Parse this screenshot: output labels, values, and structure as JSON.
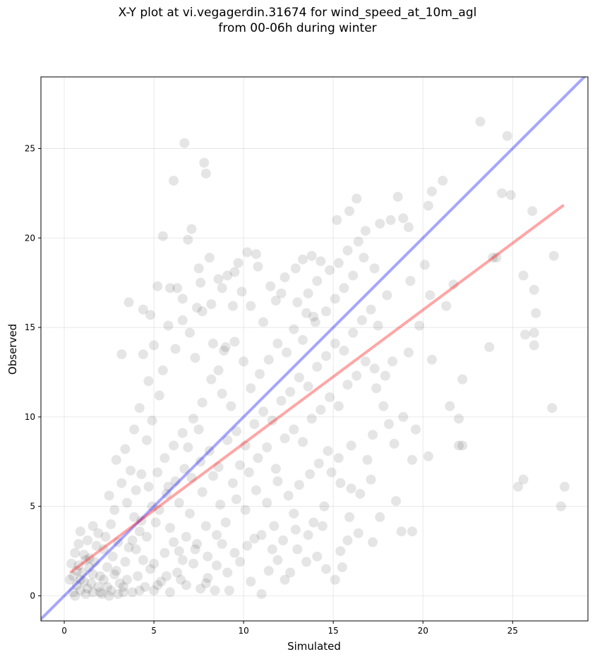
{
  "chart_data": {
    "type": "scatter",
    "title_lines": [
      "X-Y plot at vi.vegagerdin.31674 for wind_speed_at_10m_agl",
      "from 00-06h during winter"
    ],
    "xlabel": "Simulated",
    "ylabel": "Observed",
    "xlim": [
      -1.3,
      29.2
    ],
    "ylim": [
      -1.4,
      29.0
    ],
    "xticks": [
      0,
      5,
      10,
      15,
      20,
      25
    ],
    "yticks": [
      0,
      5,
      10,
      15,
      20,
      25
    ],
    "grid": true,
    "point_color": "#000000",
    "point_alpha": 0.1,
    "lines": [
      {
        "kind": "identity",
        "color": "#0000ff",
        "alpha": 0.35,
        "x": [
          -1.3,
          29.2
        ],
        "y": [
          -1.3,
          29.2
        ]
      },
      {
        "kind": "fit",
        "color": "#ff0000",
        "alpha": 0.35,
        "x": [
          0.4,
          27.8
        ],
        "y": [
          1.35,
          21.8
        ]
      }
    ],
    "points": [
      [
        0.7,
        0.6
      ],
      [
        0.9,
        0.3
      ],
      [
        1.1,
        0.8
      ],
      [
        0.5,
        1.1
      ],
      [
        1.3,
        0.4
      ],
      [
        1.6,
        1.2
      ],
      [
        0.8,
        1.7
      ],
      [
        1.9,
        0.5
      ],
      [
        2.2,
        0.9
      ],
      [
        1.4,
        2.1
      ],
      [
        2.6,
        0.3
      ],
      [
        0.6,
        2.4
      ],
      [
        2.9,
        1.4
      ],
      [
        1.8,
        2.8
      ],
      [
        3.1,
        0.7
      ],
      [
        3.4,
        1.9
      ],
      [
        2.3,
        3.3
      ],
      [
        0.9,
        3.6
      ],
      [
        3.8,
        0.2
      ],
      [
        4.1,
        1.1
      ],
      [
        1.2,
        0.1
      ],
      [
        2.0,
        0.2
      ],
      [
        3.0,
        0.1
      ],
      [
        4.5,
        0.5
      ],
      [
        5.0,
        0.3
      ],
      [
        0.4,
        1.8
      ],
      [
        1.6,
        3.9
      ],
      [
        2.7,
        2.2
      ],
      [
        3.6,
        2.7
      ],
      [
        4.4,
        2.0
      ],
      [
        0.3,
        0.9
      ],
      [
        0.6,
        0.0
      ],
      [
        1.0,
        1.3
      ],
      [
        1.5,
        0.7
      ],
      [
        2.4,
        1.6
      ],
      [
        2.1,
        0.1
      ],
      [
        3.3,
        0.5
      ],
      [
        1.7,
        1.9
      ],
      [
        0.8,
        2.9
      ],
      [
        1.3,
        3.1
      ],
      [
        4.8,
        1.5
      ],
      [
        5.4,
        0.8
      ],
      [
        5.9,
        0.2
      ],
      [
        6.3,
        1.3
      ],
      [
        6.8,
        0.6
      ],
      [
        7.2,
        1.8
      ],
      [
        5.6,
        2.4
      ],
      [
        6.1,
        3.0
      ],
      [
        7.6,
        0.4
      ],
      [
        8.0,
        1.0
      ],
      [
        8.4,
        0.3
      ],
      [
        4.6,
        3.3
      ],
      [
        5.1,
        4.1
      ],
      [
        3.9,
        4.4
      ],
      [
        4.2,
        3.6
      ],
      [
        2.8,
        4.8
      ],
      [
        3.5,
        5.2
      ],
      [
        2.5,
        5.6
      ],
      [
        3.2,
        6.3
      ],
      [
        4.0,
        5.9
      ],
      [
        3.7,
        7.0
      ],
      [
        2.9,
        7.6
      ],
      [
        4.3,
        6.8
      ],
      [
        3.4,
        8.2
      ],
      [
        4.6,
        8.7
      ],
      [
        3.9,
        9.3
      ],
      [
        4.9,
        9.8
      ],
      [
        4.2,
        10.5
      ],
      [
        5.3,
        11.2
      ],
      [
        4.7,
        12.0
      ],
      [
        5.5,
        12.6
      ],
      [
        4.4,
        13.5
      ],
      [
        5.0,
        14.0
      ],
      [
        3.2,
        13.5
      ],
      [
        3.6,
        16.4
      ],
      [
        4.4,
        16.0
      ],
      [
        5.5,
        20.1
      ],
      [
        6.7,
        25.3
      ],
      [
        7.8,
        24.2
      ],
      [
        7.9,
        23.6
      ],
      [
        6.1,
        23.2
      ],
      [
        7.1,
        20.5
      ],
      [
        6.9,
        19.9
      ],
      [
        7.6,
        17.5
      ],
      [
        6.3,
        17.2
      ],
      [
        7.4,
        16.1
      ],
      [
        8.2,
        16.3
      ],
      [
        6.6,
        15.4
      ],
      [
        7.0,
        14.7
      ],
      [
        8.3,
        14.1
      ],
      [
        5.8,
        15.1
      ],
      [
        6.2,
        13.8
      ],
      [
        7.3,
        13.3
      ],
      [
        8.6,
        12.6
      ],
      [
        9.0,
        13.9
      ],
      [
        9.4,
        16.2
      ],
      [
        8.8,
        17.2
      ],
      [
        9.7,
        18.6
      ],
      [
        9.5,
        18.1
      ],
      [
        10.2,
        19.2
      ],
      [
        10.7,
        19.1
      ],
      [
        9.9,
        17.0
      ],
      [
        8.1,
        18.9
      ],
      [
        7.5,
        18.3
      ],
      [
        10.4,
        16.2
      ],
      [
        11.1,
        15.3
      ],
      [
        11.8,
        16.5
      ],
      [
        12.3,
        17.8
      ],
      [
        12.9,
        18.3
      ],
      [
        13.3,
        18.8
      ],
      [
        13.8,
        19.0
      ],
      [
        14.3,
        18.7
      ],
      [
        14.8,
        18.2
      ],
      [
        14.1,
        17.6
      ],
      [
        13.6,
        16.9
      ],
      [
        13.0,
        16.4
      ],
      [
        13.5,
        15.8
      ],
      [
        14.0,
        15.3
      ],
      [
        14.6,
        15.9
      ],
      [
        15.1,
        16.6
      ],
      [
        15.6,
        17.2
      ],
      [
        16.1,
        17.9
      ],
      [
        15.3,
        18.6
      ],
      [
        15.8,
        19.3
      ],
      [
        16.4,
        19.8
      ],
      [
        16.8,
        20.4
      ],
      [
        15.2,
        21.0
      ],
      [
        15.9,
        21.5
      ],
      [
        16.3,
        22.2
      ],
      [
        17.6,
        20.8
      ],
      [
        18.2,
        21.0
      ],
      [
        18.9,
        21.1
      ],
      [
        19.2,
        20.6
      ],
      [
        18.6,
        22.3
      ],
      [
        20.3,
        21.8
      ],
      [
        20.5,
        22.6
      ],
      [
        21.1,
        23.2
      ],
      [
        23.2,
        26.5
      ],
      [
        24.7,
        25.7
      ],
      [
        24.4,
        22.5
      ],
      [
        24.9,
        22.4
      ],
      [
        26.1,
        21.5
      ],
      [
        25.6,
        17.9
      ],
      [
        26.2,
        17.1
      ],
      [
        26.3,
        15.8
      ],
      [
        26.2,
        14.7
      ],
      [
        26.2,
        14.0
      ],
      [
        25.7,
        14.6
      ],
      [
        23.7,
        13.9
      ],
      [
        24.1,
        18.9
      ],
      [
        21.7,
        17.4
      ],
      [
        21.3,
        16.2
      ],
      [
        20.4,
        16.8
      ],
      [
        19.3,
        17.6
      ],
      [
        19.8,
        15.1
      ],
      [
        19.2,
        13.6
      ],
      [
        18.3,
        13.1
      ],
      [
        17.9,
        12.3
      ],
      [
        17.4,
        11.6
      ],
      [
        17.8,
        10.6
      ],
      [
        18.1,
        9.6
      ],
      [
        17.2,
        9.0
      ],
      [
        18.4,
        8.5
      ],
      [
        18.9,
        10.0
      ],
      [
        19.6,
        9.3
      ],
      [
        20.3,
        7.8
      ],
      [
        21.5,
        10.6
      ],
      [
        22.2,
        12.1
      ],
      [
        22.0,
        9.9
      ],
      [
        22.0,
        8.4
      ],
      [
        19.4,
        7.6
      ],
      [
        19.4,
        3.6
      ],
      [
        18.8,
        3.6
      ],
      [
        18.5,
        5.3
      ],
      [
        17.2,
        3.0
      ],
      [
        17.6,
        4.4
      ],
      [
        16.4,
        3.5
      ],
      [
        15.8,
        3.1
      ],
      [
        15.4,
        2.5
      ],
      [
        15.5,
        1.6
      ],
      [
        15.1,
        0.9
      ],
      [
        14.6,
        1.5
      ],
      [
        14.1,
        2.2
      ],
      [
        13.5,
        1.9
      ],
      [
        13.0,
        2.6
      ],
      [
        12.6,
        1.3
      ],
      [
        11.9,
        2.0
      ],
      [
        12.3,
        0.9
      ],
      [
        11.4,
        1.4
      ],
      [
        11.0,
        0.1
      ],
      [
        10.4,
        0.8
      ],
      [
        9.8,
        1.9
      ],
      [
        9.2,
        0.3
      ],
      [
        10.6,
        3.2
      ],
      [
        11.7,
        3.9
      ],
      [
        12.8,
        4.6
      ],
      [
        13.9,
        4.1
      ],
      [
        14.5,
        5.0
      ],
      [
        15.9,
        4.4
      ],
      [
        16.5,
        5.7
      ],
      [
        17.1,
        6.5
      ],
      [
        16.9,
        7.6
      ],
      [
        16.0,
        8.4
      ],
      [
        15.3,
        7.7
      ],
      [
        14.7,
        8.1
      ],
      [
        14.2,
        7.4
      ],
      [
        13.7,
        6.8
      ],
      [
        13.1,
        6.2
      ],
      [
        12.5,
        5.6
      ],
      [
        11.9,
        6.4
      ],
      [
        11.3,
        5.2
      ],
      [
        10.7,
        5.9
      ],
      [
        10.1,
        4.8
      ],
      [
        9.6,
        5.4
      ],
      [
        9.0,
        4.1
      ],
      [
        8.5,
        3.4
      ],
      [
        7.9,
        3.9
      ],
      [
        7.4,
        2.9
      ],
      [
        6.8,
        3.3
      ],
      [
        6.4,
        2.5
      ],
      [
        5.9,
        3.8
      ],
      [
        5.3,
        4.8
      ],
      [
        5.7,
        5.7
      ],
      [
        6.2,
        6.4
      ],
      [
        6.7,
        7.1
      ],
      [
        7.1,
        6.6
      ],
      [
        7.6,
        7.5
      ],
      [
        8.1,
        8.1
      ],
      [
        8.6,
        7.2
      ],
      [
        9.1,
        8.7
      ],
      [
        9.6,
        9.2
      ],
      [
        10.1,
        8.4
      ],
      [
        10.6,
        9.6
      ],
      [
        11.1,
        10.3
      ],
      [
        11.6,
        9.8
      ],
      [
        12.1,
        10.9
      ],
      [
        12.6,
        11.4
      ],
      [
        13.1,
        12.2
      ],
      [
        13.6,
        11.7
      ],
      [
        14.1,
        12.8
      ],
      [
        14.6,
        13.4
      ],
      [
        15.1,
        14.1
      ],
      [
        15.6,
        13.7
      ],
      [
        16.1,
        14.7
      ],
      [
        16.6,
        15.4
      ],
      [
        17.1,
        16.0
      ],
      [
        17.5,
        15.1
      ],
      [
        18.0,
        16.8
      ],
      [
        17.3,
        18.3
      ],
      [
        16.7,
        18.9
      ],
      [
        9.3,
        10.6
      ],
      [
        8.8,
        11.3
      ],
      [
        8.2,
        12.1
      ],
      [
        7.7,
        10.8
      ],
      [
        7.2,
        9.9
      ],
      [
        6.6,
        9.1
      ],
      [
        6.1,
        8.4
      ],
      [
        5.6,
        7.7
      ],
      [
        5.2,
        6.9
      ],
      [
        4.7,
        6.1
      ],
      [
        10.4,
        11.6
      ],
      [
        10.9,
        12.4
      ],
      [
        11.4,
        13.2
      ],
      [
        11.9,
        14.1
      ],
      [
        12.4,
        13.6
      ],
      [
        12.8,
        14.9
      ],
      [
        13.3,
        14.3
      ],
      [
        13.9,
        15.6
      ],
      [
        10.0,
        13.1
      ],
      [
        9.5,
        14.2
      ],
      [
        8.9,
        13.7
      ],
      [
        9.8,
        7.3
      ],
      [
        10.3,
        6.9
      ],
      [
        10.8,
        7.7
      ],
      [
        11.3,
        8.3
      ],
      [
        11.8,
        7.1
      ],
      [
        12.3,
        8.8
      ],
      [
        12.8,
        9.3
      ],
      [
        13.3,
        8.6
      ],
      [
        13.8,
        9.9
      ],
      [
        14.3,
        10.4
      ],
      [
        14.8,
        11.1
      ],
      [
        15.3,
        10.6
      ],
      [
        15.8,
        11.8
      ],
      [
        16.3,
        12.3
      ],
      [
        16.8,
        13.1
      ],
      [
        17.3,
        12.7
      ],
      [
        14.9,
        6.9
      ],
      [
        15.4,
        6.3
      ],
      [
        16.0,
        6.0
      ],
      [
        27.2,
        10.5
      ],
      [
        27.7,
        5.0
      ],
      [
        27.9,
        6.1
      ],
      [
        25.6,
        6.5
      ],
      [
        25.3,
        6.1
      ],
      [
        27.3,
        19.0
      ],
      [
        23.9,
        18.9
      ],
      [
        20.1,
        18.5
      ],
      [
        22.2,
        8.4
      ],
      [
        20.5,
        13.2
      ],
      [
        2.0,
        1.1
      ],
      [
        2.4,
        0.5
      ],
      [
        1.1,
        2.3
      ],
      [
        0.7,
        1.4
      ],
      [
        1.9,
        3.5
      ],
      [
        2.2,
        2.6
      ],
      [
        3.0,
        3.0
      ],
      [
        2.6,
        4.0
      ],
      [
        3.8,
        3.1
      ],
      [
        4.3,
        4.2
      ],
      [
        4.9,
        5.0
      ],
      [
        5.8,
        6.1
      ],
      [
        6.4,
        5.2
      ],
      [
        7.0,
        4.6
      ],
      [
        7.7,
        5.8
      ],
      [
        8.3,
        6.7
      ],
      [
        8.7,
        5.1
      ],
      [
        9.4,
        6.3
      ],
      [
        6.9,
        8.3
      ],
      [
        7.5,
        9.3
      ],
      [
        1.4,
        1.6
      ],
      [
        0.9,
        0.9
      ],
      [
        1.2,
        2.0
      ],
      [
        2.8,
        1.2
      ],
      [
        3.5,
        0.9
      ],
      [
        4.0,
        2.6
      ],
      [
        5.0,
        1.8
      ],
      [
        5.7,
        1.1
      ],
      [
        6.6,
        2.0
      ],
      [
        7.3,
        2.6
      ],
      [
        8.0,
        2.2
      ],
      [
        8.8,
        2.9
      ],
      [
        9.5,
        2.4
      ],
      [
        10.2,
        2.8
      ],
      [
        11.0,
        3.4
      ],
      [
        11.6,
        2.6
      ],
      [
        12.2,
        3.1
      ],
      [
        12.9,
        3.7
      ],
      [
        13.6,
        3.4
      ],
      [
        14.4,
        3.9
      ],
      [
        9.1,
        1.3
      ],
      [
        8.5,
        1.7
      ],
      [
        7.9,
        0.7
      ],
      [
        6.5,
        0.9
      ],
      [
        5.2,
        0.6
      ],
      [
        4.2,
        0.3
      ],
      [
        3.3,
        0.2
      ],
      [
        2.5,
        0.0
      ],
      [
        1.6,
        0.2
      ],
      [
        0.5,
        0.2
      ],
      [
        12.1,
        16.9
      ],
      [
        11.5,
        17.3
      ],
      [
        10.8,
        18.4
      ],
      [
        9.1,
        17.9
      ],
      [
        8.6,
        17.7
      ],
      [
        7.7,
        15.9
      ],
      [
        6.6,
        16.6
      ],
      [
        5.9,
        17.2
      ],
      [
        5.2,
        17.3
      ],
      [
        4.8,
        15.7
      ]
    ]
  }
}
